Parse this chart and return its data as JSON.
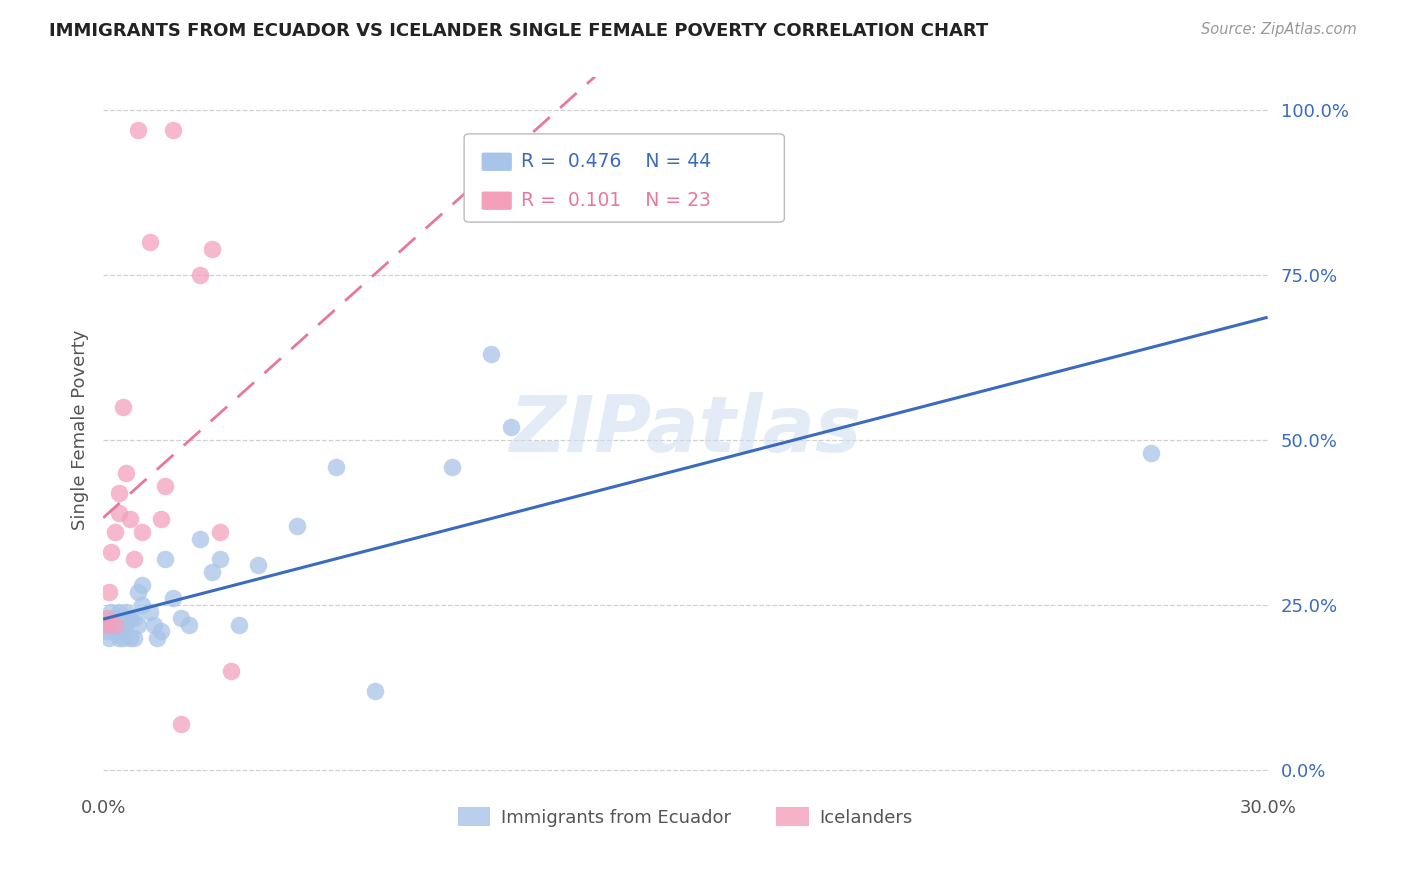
{
  "title": "IMMIGRANTS FROM ECUADOR VS ICELANDER SINGLE FEMALE POVERTY CORRELATION CHART",
  "source": "Source: ZipAtlas.com",
  "ylabel": "Single Female Poverty",
  "right_yticklabels": [
    "0.0%",
    "25.0%",
    "50.0%",
    "75.0%",
    "100.0%"
  ],
  "right_ytick_vals": [
    0.0,
    0.25,
    0.5,
    0.75,
    1.0
  ],
  "xlim": [
    0.0,
    0.3
  ],
  "ylim": [
    -0.02,
    1.05
  ],
  "ecuador_R": "0.476",
  "ecuador_N": "44",
  "icelander_R": "0.101",
  "icelander_N": "23",
  "ecuador_color": "#a8c4e8",
  "icelander_color": "#f4a0bb",
  "ecuador_line_color": "#3a6bbf",
  "icelander_line_color": "#e8789a",
  "watermark": "ZIPatlas",
  "ecuador_x": [
    0.0008,
    0.001,
    0.0015,
    0.002,
    0.002,
    0.003,
    0.003,
    0.003,
    0.004,
    0.004,
    0.004,
    0.005,
    0.005,
    0.005,
    0.006,
    0.006,
    0.007,
    0.007,
    0.008,
    0.008,
    0.009,
    0.009,
    0.01,
    0.01,
    0.012,
    0.013,
    0.014,
    0.015,
    0.016,
    0.018,
    0.02,
    0.022,
    0.025,
    0.028,
    0.03,
    0.035,
    0.04,
    0.05,
    0.06,
    0.07,
    0.09,
    0.1,
    0.105,
    0.27
  ],
  "ecuador_y": [
    0.22,
    0.21,
    0.2,
    0.22,
    0.24,
    0.22,
    0.21,
    0.23,
    0.2,
    0.22,
    0.24,
    0.21,
    0.22,
    0.2,
    0.22,
    0.24,
    0.2,
    0.23,
    0.2,
    0.23,
    0.27,
    0.22,
    0.25,
    0.28,
    0.24,
    0.22,
    0.2,
    0.21,
    0.32,
    0.26,
    0.23,
    0.22,
    0.35,
    0.3,
    0.32,
    0.22,
    0.31,
    0.37,
    0.46,
    0.12,
    0.46,
    0.63,
    0.52,
    0.48
  ],
  "icelander_x": [
    0.0008,
    0.001,
    0.0015,
    0.002,
    0.003,
    0.003,
    0.004,
    0.004,
    0.005,
    0.006,
    0.007,
    0.008,
    0.009,
    0.01,
    0.012,
    0.015,
    0.016,
    0.018,
    0.02,
    0.025,
    0.028,
    0.03,
    0.033
  ],
  "icelander_y": [
    0.22,
    0.23,
    0.27,
    0.33,
    0.22,
    0.36,
    0.42,
    0.39,
    0.55,
    0.45,
    0.38,
    0.32,
    0.97,
    0.36,
    0.8,
    0.38,
    0.43,
    0.97,
    0.07,
    0.75,
    0.79,
    0.36,
    0.15
  ]
}
